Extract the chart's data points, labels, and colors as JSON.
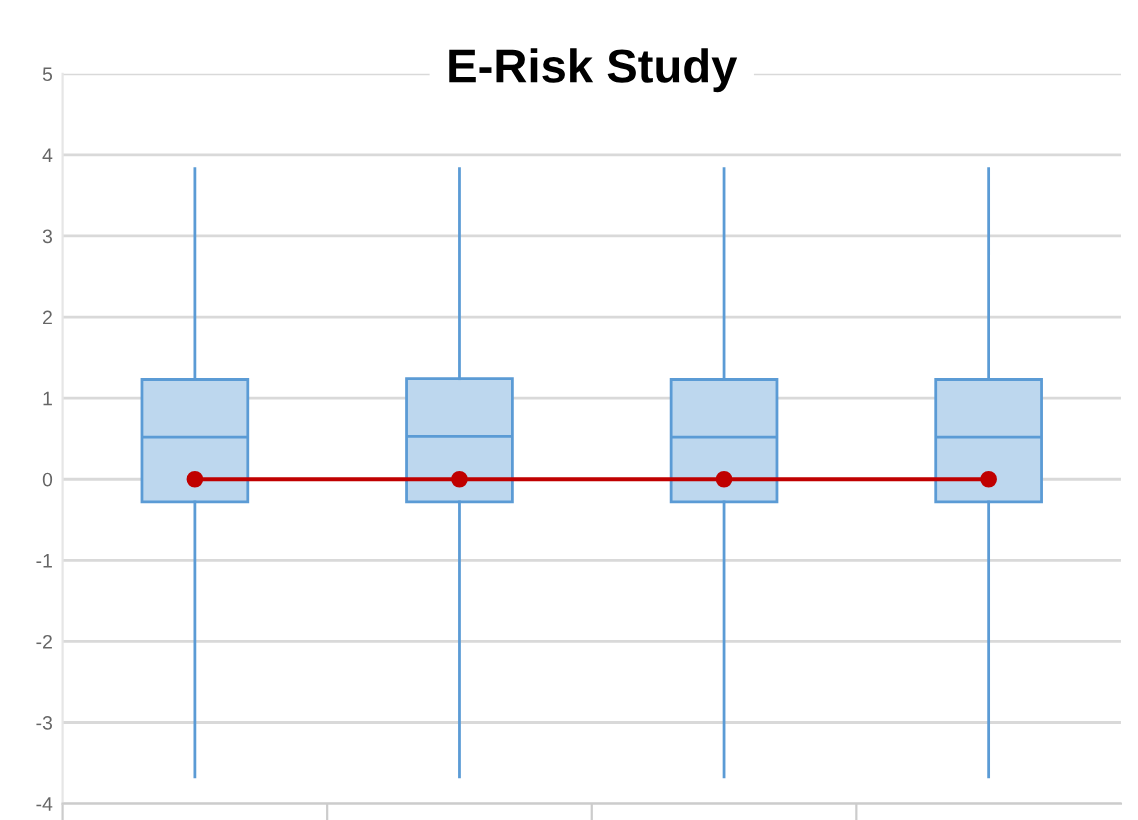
{
  "chart_data": {
    "type": "box",
    "title": "E-Risk Study",
    "categories": [
      null,
      null,
      null,
      null
    ],
    "series": [
      {
        "type": "box",
        "color": "#5b9bd5",
        "boxes": [
          {
            "low": -3.67,
            "q1": -0.28,
            "median": 0.52,
            "q3": 1.23,
            "high": 3.83
          },
          {
            "low": -3.67,
            "q1": -0.28,
            "median": 0.53,
            "q3": 1.24,
            "high": 3.83
          },
          {
            "low": -3.67,
            "q1": -0.28,
            "median": 0.52,
            "q3": 1.23,
            "high": 3.83
          },
          {
            "low": -3.67,
            "q1": -0.28,
            "median": 0.52,
            "q3": 1.23,
            "high": 3.83
          }
        ]
      },
      {
        "type": "line",
        "color": "#c00000",
        "values": [
          0,
          0,
          0,
          0
        ],
        "marker": "circle"
      }
    ],
    "ylim": [
      -4,
      5
    ],
    "yticks": [
      -4,
      -3,
      -2,
      -1,
      0,
      1,
      2,
      3,
      4,
      5
    ],
    "grid": "y",
    "tick_labels": "y"
  }
}
